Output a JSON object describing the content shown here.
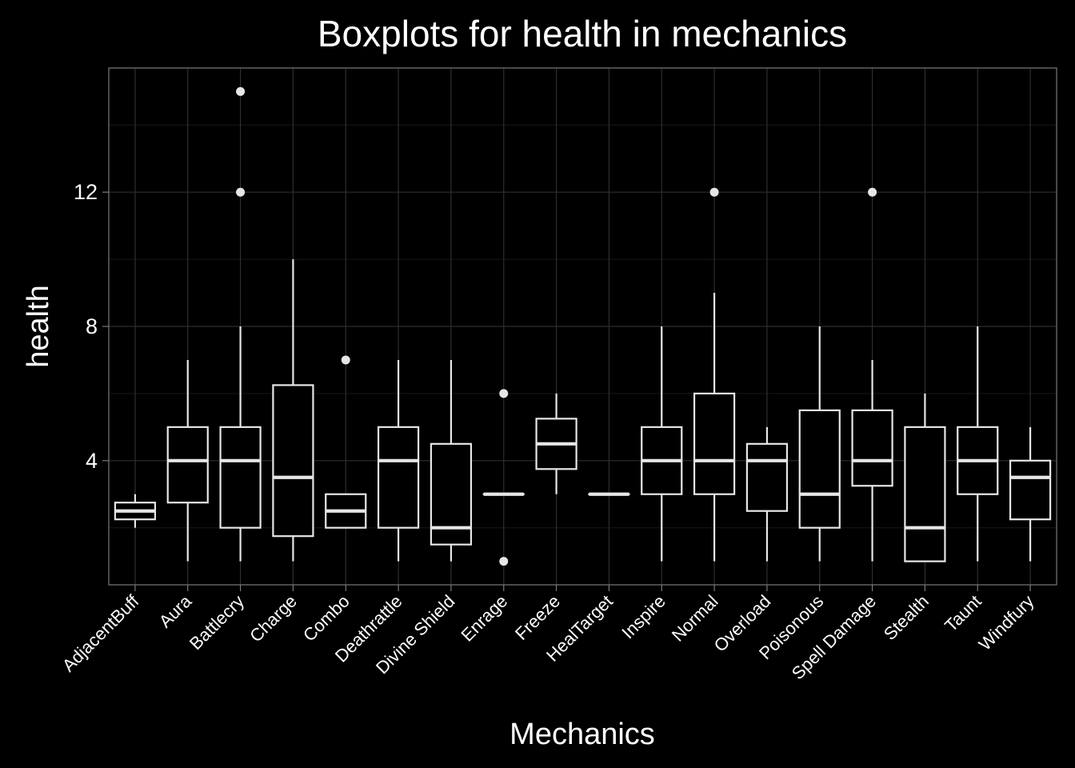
{
  "chart_data": {
    "type": "boxplot",
    "title": "Boxplots for health in mechanics",
    "xlabel": "Mechanics",
    "ylabel": "health",
    "ylim": [
      0.3,
      15.7
    ],
    "yticks": [
      4,
      8,
      12
    ],
    "grid": true,
    "legend": "none",
    "colors": {
      "background": "#000000",
      "panel_border": "#7a7a7a",
      "grid_major": "#2e2e2e",
      "grid_minor": "#181818",
      "box": "#e6e6e6",
      "text": "#ffffff"
    },
    "categories": [
      "AdjacentBuff",
      "Aura",
      "Battlecry",
      "Charge",
      "Combo",
      "Deathrattle",
      "Divine Shield",
      "Enrage",
      "Freeze",
      "HealTarget",
      "Inspire",
      "Normal",
      "Overload",
      "Poisonous",
      "Spell Damage",
      "Stealth",
      "Taunt",
      "Windfury"
    ],
    "boxes": [
      {
        "category": "AdjacentBuff",
        "whisker_low": 2,
        "q1": 2.25,
        "median": 2.5,
        "q3": 2.75,
        "whisker_high": 3,
        "outliers": []
      },
      {
        "category": "Aura",
        "whisker_low": 1,
        "q1": 2.75,
        "median": 4,
        "q3": 5,
        "whisker_high": 7,
        "outliers": []
      },
      {
        "category": "Battlecry",
        "whisker_low": 1,
        "q1": 2,
        "median": 4,
        "q3": 5,
        "whisker_high": 8,
        "outliers": [
          12,
          15
        ]
      },
      {
        "category": "Charge",
        "whisker_low": 1,
        "q1": 1.75,
        "median": 3.5,
        "q3": 6.25,
        "whisker_high": 10,
        "outliers": []
      },
      {
        "category": "Combo",
        "whisker_low": 2,
        "q1": 2,
        "median": 2.5,
        "q3": 3,
        "whisker_high": 3,
        "outliers": [
          7
        ]
      },
      {
        "category": "Deathrattle",
        "whisker_low": 1,
        "q1": 2,
        "median": 4,
        "q3": 5,
        "whisker_high": 7,
        "outliers": []
      },
      {
        "category": "Divine Shield",
        "whisker_low": 1,
        "q1": 1.5,
        "median": 2,
        "q3": 4.5,
        "whisker_high": 7,
        "outliers": []
      },
      {
        "category": "Enrage",
        "whisker_low": 3,
        "q1": 3,
        "median": 3,
        "q3": 3,
        "whisker_high": 3,
        "outliers": [
          1,
          6
        ]
      },
      {
        "category": "Freeze",
        "whisker_low": 3,
        "q1": 3.75,
        "median": 4.5,
        "q3": 5.25,
        "whisker_high": 6,
        "outliers": []
      },
      {
        "category": "HealTarget",
        "whisker_low": 3,
        "q1": 3,
        "median": 3,
        "q3": 3,
        "whisker_high": 3,
        "outliers": []
      },
      {
        "category": "Inspire",
        "whisker_low": 1,
        "q1": 3,
        "median": 4,
        "q3": 5,
        "whisker_high": 8,
        "outliers": []
      },
      {
        "category": "Normal",
        "whisker_low": 1,
        "q1": 3,
        "median": 4,
        "q3": 6,
        "whisker_high": 9,
        "outliers": [
          12
        ]
      },
      {
        "category": "Overload",
        "whisker_low": 1,
        "q1": 2.5,
        "median": 4,
        "q3": 4.5,
        "whisker_high": 5,
        "outliers": []
      },
      {
        "category": "Poisonous",
        "whisker_low": 1,
        "q1": 2,
        "median": 3,
        "q3": 5.5,
        "whisker_high": 8,
        "outliers": []
      },
      {
        "category": "Spell Damage",
        "whisker_low": 1,
        "q1": 3.25,
        "median": 4,
        "q3": 5.5,
        "whisker_high": 7,
        "outliers": [
          12
        ]
      },
      {
        "category": "Stealth",
        "whisker_low": 1,
        "q1": 1,
        "median": 2,
        "q3": 5,
        "whisker_high": 6,
        "outliers": []
      },
      {
        "category": "Taunt",
        "whisker_low": 1,
        "q1": 3,
        "median": 4,
        "q3": 5,
        "whisker_high": 8,
        "outliers": []
      },
      {
        "category": "Windfury",
        "whisker_low": 1,
        "q1": 2.25,
        "median": 3.5,
        "q3": 4,
        "whisker_high": 5,
        "outliers": []
      }
    ]
  }
}
